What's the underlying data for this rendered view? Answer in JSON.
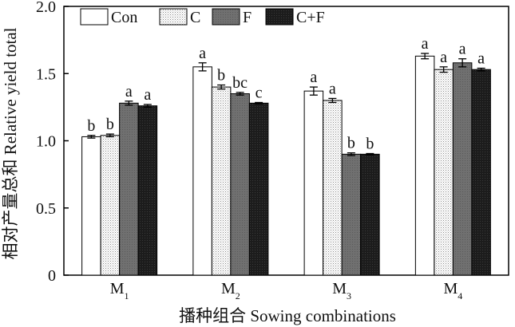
{
  "chart_data": {
    "type": "bar",
    "title": "",
    "xlabel": "播种组合 Sowing combinations",
    "ylabel": "相对产量总和 Relative yield total",
    "ylim": [
      0,
      2.0
    ],
    "yticks": [
      "0",
      "0.5",
      "1.0",
      "1.5",
      "2.0"
    ],
    "ytick_values": [
      0,
      0.5,
      1.0,
      1.5,
      2.0
    ],
    "categories": [
      {
        "base": "M",
        "sub": "1"
      },
      {
        "base": "M",
        "sub": "2"
      },
      {
        "base": "M",
        "sub": "3"
      },
      {
        "base": "M",
        "sub": "4"
      }
    ],
    "legend_position": "top-left",
    "series": [
      {
        "name": "Con",
        "pattern": "white",
        "values": [
          1.03,
          1.55,
          1.37,
          1.63
        ],
        "errors": [
          0.01,
          0.03,
          0.03,
          0.02
        ],
        "letters": [
          "b",
          "a",
          "a",
          "a"
        ]
      },
      {
        "name": "C",
        "pattern": "dotted",
        "values": [
          1.04,
          1.4,
          1.3,
          1.53
        ],
        "errors": [
          0.01,
          0.015,
          0.015,
          0.02
        ],
        "letters": [
          "b",
          "b",
          "a",
          "a"
        ]
      },
      {
        "name": "F",
        "pattern": "gray",
        "values": [
          1.28,
          1.35,
          0.9,
          1.58
        ],
        "errors": [
          0.015,
          0.01,
          0.01,
          0.03
        ],
        "letters": [
          "a",
          "bc",
          "b",
          "a"
        ]
      },
      {
        "name": "C+F",
        "pattern": "black",
        "values": [
          1.26,
          1.28,
          0.9,
          1.53
        ],
        "errors": [
          0.01,
          0.005,
          0.005,
          0.01
        ],
        "letters": [
          "a",
          "c",
          "b",
          "a"
        ]
      }
    ]
  }
}
